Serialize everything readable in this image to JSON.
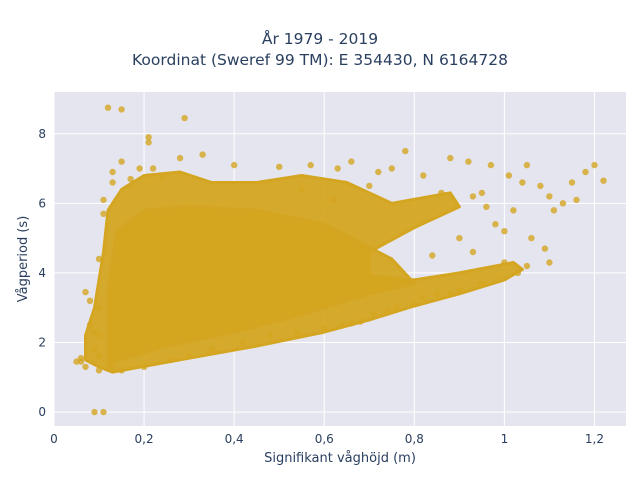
{
  "chart_data": {
    "type": "scatter",
    "title": "År 1979 - 2019",
    "subtitle": "Koordinat (Sweref 99 TM): E 354430, N 6164728",
    "xlabel": "Signifikant våghöjd (m)",
    "ylabel": "Vågperiod (s)",
    "xlim": [
      0,
      1.27
    ],
    "ylim": [
      -0.4,
      9.2
    ],
    "xticks": [
      0,
      0.2,
      0.4,
      0.6,
      0.8,
      1,
      1.2
    ],
    "xtick_labels": [
      "0",
      "0,2",
      "0,4",
      "0,6",
      "0,8",
      "1",
      "1,2"
    ],
    "yticks": [
      0,
      2,
      4,
      6,
      8
    ],
    "ytick_labels": [
      "0",
      "2",
      "4",
      "6",
      "8"
    ],
    "grid": true,
    "colors": {
      "marker": "#d4a520",
      "plot_bg": "#e5e5ef",
      "grid": "#ffffff"
    },
    "series": [
      {
        "points": [
          [
            0.09,
            0.0
          ],
          [
            0.11,
            0.0
          ],
          [
            0.12,
            8.75
          ],
          [
            0.15,
            8.7
          ],
          [
            0.29,
            8.45
          ],
          [
            0.21,
            7.9
          ],
          [
            0.21,
            7.75
          ],
          [
            0.05,
            1.45
          ],
          [
            0.06,
            1.45
          ],
          [
            0.06,
            1.55
          ],
          [
            0.07,
            1.3
          ],
          [
            0.07,
            3.45
          ],
          [
            0.08,
            3.2
          ],
          [
            0.08,
            2.5
          ],
          [
            0.09,
            2.3
          ],
          [
            0.09,
            1.8
          ],
          [
            0.1,
            1.2
          ],
          [
            0.1,
            1.6
          ],
          [
            0.1,
            2.2
          ],
          [
            0.1,
            3.0
          ],
          [
            0.1,
            4.4
          ],
          [
            0.11,
            5.7
          ],
          [
            0.11,
            6.1
          ],
          [
            0.12,
            1.25
          ],
          [
            0.13,
            1.3
          ],
          [
            0.13,
            6.6
          ],
          [
            0.13,
            6.9
          ],
          [
            0.15,
            1.2
          ],
          [
            0.15,
            7.2
          ],
          [
            0.17,
            6.7
          ],
          [
            0.19,
            7.0
          ],
          [
            0.2,
            1.3
          ],
          [
            0.22,
            7.0
          ],
          [
            0.24,
            6.8
          ],
          [
            0.26,
            1.5
          ],
          [
            0.28,
            7.3
          ],
          [
            0.3,
            1.6
          ],
          [
            0.33,
            7.4
          ],
          [
            0.35,
            1.8
          ],
          [
            0.4,
            7.1
          ],
          [
            0.42,
            2.0
          ],
          [
            0.48,
            2.2
          ],
          [
            0.5,
            7.05
          ],
          [
            0.54,
            2.25
          ],
          [
            0.57,
            7.1
          ],
          [
            0.6,
            2.4
          ],
          [
            0.63,
            7.0
          ],
          [
            0.64,
            2.5
          ],
          [
            0.66,
            2.55
          ],
          [
            0.66,
            7.2
          ],
          [
            0.68,
            2.6
          ],
          [
            0.71,
            2.8
          ],
          [
            0.72,
            6.9
          ],
          [
            0.74,
            2.9
          ],
          [
            0.75,
            7.0
          ],
          [
            0.76,
            3.0
          ],
          [
            0.78,
            7.5
          ],
          [
            0.8,
            3.1
          ],
          [
            0.82,
            6.8
          ],
          [
            0.82,
            3.3
          ],
          [
            0.85,
            3.4
          ],
          [
            0.88,
            7.3
          ],
          [
            0.88,
            3.4
          ],
          [
            0.9,
            3.5
          ],
          [
            0.92,
            7.2
          ],
          [
            0.93,
            6.2
          ],
          [
            0.95,
            3.7
          ],
          [
            0.95,
            6.3
          ],
          [
            0.97,
            7.1
          ],
          [
            0.98,
            5.4
          ],
          [
            1.0,
            4.3
          ],
          [
            1.01,
            6.8
          ],
          [
            1.02,
            5.8
          ],
          [
            1.03,
            4.0
          ],
          [
            1.04,
            6.6
          ],
          [
            1.05,
            7.1
          ],
          [
            1.05,
            4.2
          ],
          [
            1.06,
            5.0
          ],
          [
            1.08,
            6.5
          ],
          [
            1.09,
            4.7
          ],
          [
            1.1,
            6.2
          ],
          [
            1.1,
            4.3
          ],
          [
            1.11,
            5.8
          ],
          [
            1.13,
            6.0
          ],
          [
            1.15,
            6.6
          ],
          [
            1.16,
            6.1
          ],
          [
            1.18,
            6.9
          ],
          [
            1.2,
            7.1
          ],
          [
            1.22,
            6.65
          ],
          [
            0.45,
            3.3
          ],
          [
            0.62,
            6.1
          ],
          [
            0.84,
            4.5
          ],
          [
            0.96,
            5.9
          ],
          [
            0.55,
            6.4
          ],
          [
            0.7,
            6.5
          ],
          [
            0.86,
            6.3
          ],
          [
            0.9,
            5.0
          ],
          [
            0.93,
            4.6
          ],
          [
            1.0,
            5.2
          ]
        ]
      }
    ]
  }
}
